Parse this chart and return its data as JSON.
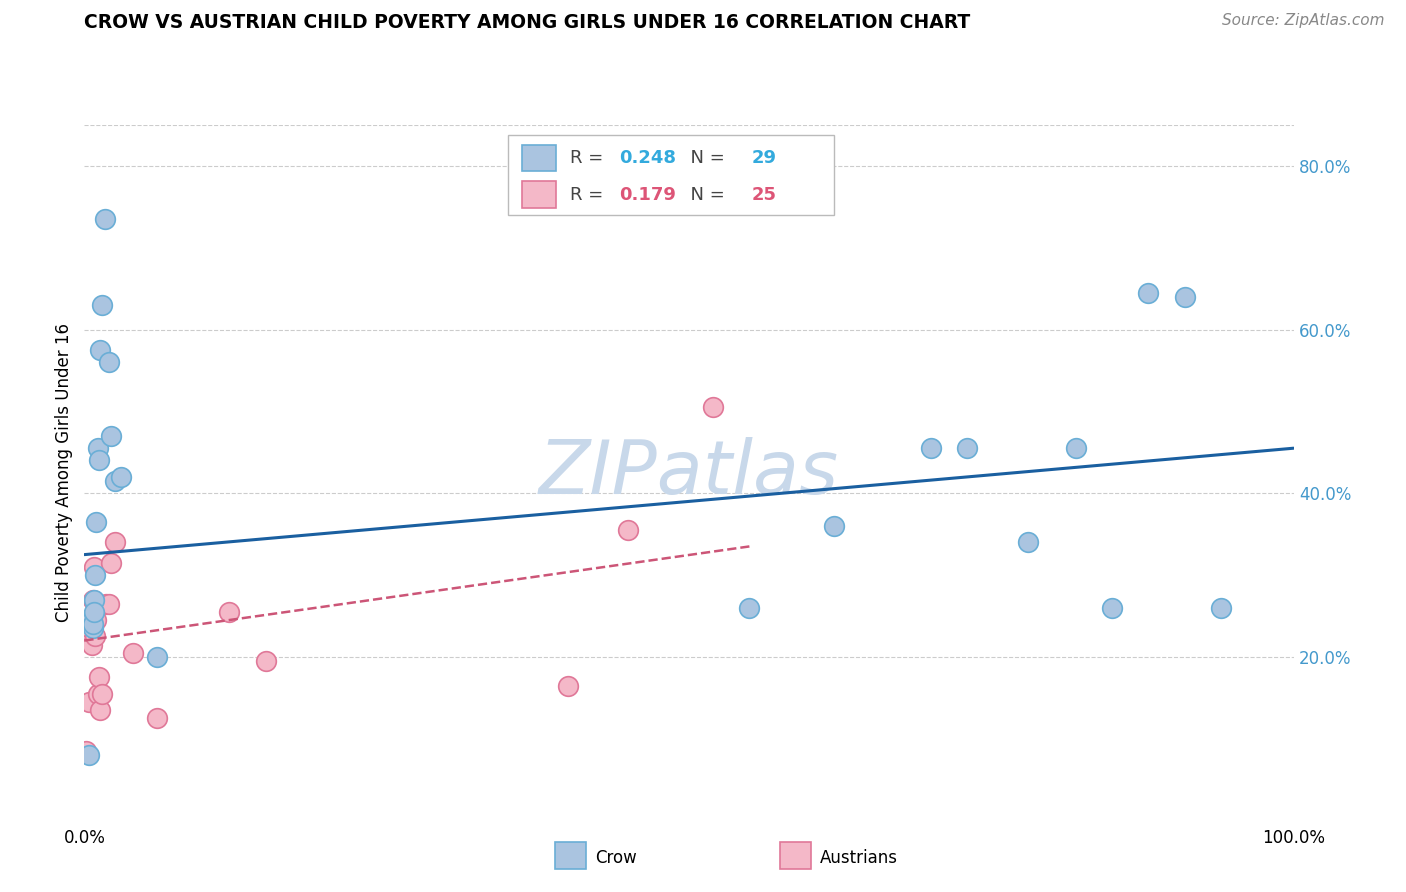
{
  "title": "CROW VS AUSTRIAN CHILD POVERTY AMONG GIRLS UNDER 16 CORRELATION CHART",
  "source": "Source: ZipAtlas.com",
  "ylabel": "Child Poverty Among Girls Under 16",
  "xlim": [
    0,
    1.0
  ],
  "ylim": [
    0,
    0.85
  ],
  "x_ticks": [
    0.0,
    1.0
  ],
  "x_tick_labels": [
    "0.0%",
    "100.0%"
  ],
  "y_ticks": [
    0.2,
    0.4,
    0.6,
    0.8
  ],
  "y_tick_labels": [
    "20.0%",
    "40.0%",
    "60.0%",
    "80.0%"
  ],
  "crow_color": "#aac4e0",
  "crow_edge_color": "#6aaed6",
  "austrians_color": "#f4b8c8",
  "austrians_edge_color": "#e07898",
  "trend_crow_color": "#1a5fa0",
  "trend_austrians_color": "#cc5577",
  "watermark_color": "#c8d8ea",
  "legend_r_crow": "0.248",
  "legend_n_crow": "29",
  "legend_r_austrians": "0.179",
  "legend_n_austrians": "25",
  "crow_x": [
    0.003,
    0.004,
    0.006,
    0.007,
    0.007,
    0.008,
    0.008,
    0.009,
    0.01,
    0.011,
    0.012,
    0.013,
    0.015,
    0.017,
    0.02,
    0.022,
    0.025,
    0.03,
    0.06,
    0.55,
    0.62,
    0.7,
    0.73,
    0.78,
    0.82,
    0.85,
    0.88,
    0.91,
    0.94
  ],
  "crow_y": [
    0.245,
    0.08,
    0.245,
    0.235,
    0.24,
    0.27,
    0.255,
    0.3,
    0.365,
    0.455,
    0.44,
    0.575,
    0.63,
    0.735,
    0.56,
    0.47,
    0.415,
    0.42,
    0.2,
    0.26,
    0.36,
    0.455,
    0.455,
    0.34,
    0.455,
    0.26,
    0.645,
    0.64,
    0.26
  ],
  "austrians_x": [
    0.001,
    0.002,
    0.003,
    0.004,
    0.005,
    0.006,
    0.007,
    0.008,
    0.009,
    0.01,
    0.011,
    0.012,
    0.013,
    0.015,
    0.018,
    0.02,
    0.022,
    0.025,
    0.04,
    0.06,
    0.12,
    0.15,
    0.4,
    0.45,
    0.52
  ],
  "austrians_y": [
    0.085,
    0.245,
    0.225,
    0.145,
    0.235,
    0.215,
    0.27,
    0.31,
    0.225,
    0.245,
    0.155,
    0.175,
    0.135,
    0.155,
    0.265,
    0.265,
    0.315,
    0.34,
    0.205,
    0.125,
    0.255,
    0.195,
    0.165,
    0.355,
    0.505
  ],
  "crow_trend_x": [
    0.0,
    1.0
  ],
  "crow_trend_y": [
    0.325,
    0.455
  ],
  "austrians_trend_x": [
    0.0,
    0.55
  ],
  "austrians_trend_y": [
    0.22,
    0.335
  ]
}
